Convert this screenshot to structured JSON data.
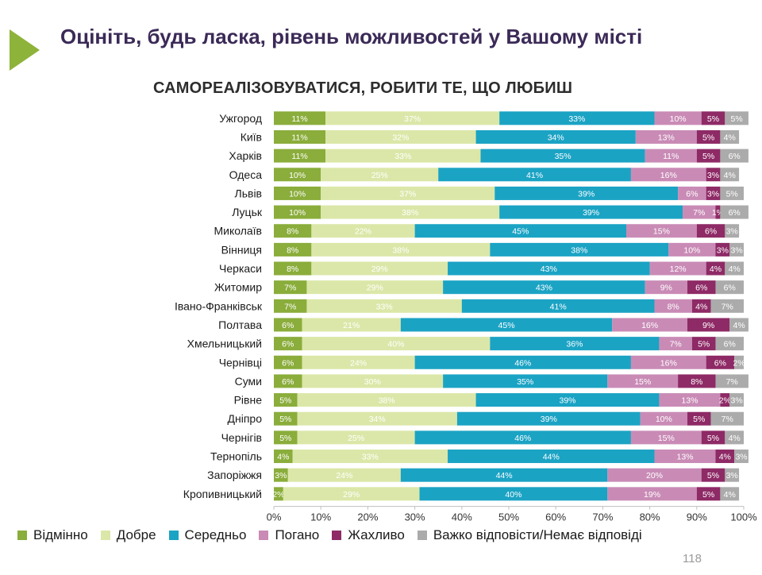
{
  "slide": {
    "title": "Оцініть, будь ласка, рівень можливостей у Вашому місті",
    "subtitle": "САМОРЕАЛІЗОВУВАТИСЯ, РОБИТИ ТЕ, ЩО ЛЮБИШ",
    "page_number": "118",
    "arrow_icon": "play-arrow-icon"
  },
  "colors": {
    "title": "#3b2a57",
    "arrow": "#8db33a",
    "label_text": "#ffffff"
  },
  "chart_data": {
    "type": "bar",
    "orientation": "horizontal",
    "stacked": "percent",
    "categories": [
      "Ужгород",
      "Київ",
      "Харків",
      "Одеса",
      "Львів",
      "Луцьк",
      "Миколаїв",
      "Вінниця",
      "Черкаси",
      "Житомир",
      "Івано-Франківськ",
      "Полтава",
      "Хмельницький",
      "Чернівці",
      "Суми",
      "Рівне",
      "Дніпро",
      "Чернігів",
      "Тернопіль",
      "Запоріжжя",
      "Кропивницький"
    ],
    "series": [
      {
        "name": "Відмінно",
        "color": "#8aad3b",
        "values": [
          11,
          11,
          11,
          10,
          10,
          10,
          8,
          8,
          8,
          7,
          7,
          6,
          6,
          6,
          6,
          5,
          5,
          5,
          4,
          3,
          2
        ]
      },
      {
        "name": "Добре",
        "color": "#dbe7a8",
        "values": [
          37,
          32,
          33,
          25,
          37,
          38,
          22,
          38,
          29,
          29,
          33,
          21,
          40,
          24,
          30,
          38,
          34,
          25,
          33,
          24,
          29
        ]
      },
      {
        "name": "Середньо",
        "color": "#1ba3c4",
        "values": [
          33,
          34,
          35,
          41,
          39,
          39,
          45,
          38,
          43,
          43,
          41,
          45,
          36,
          46,
          35,
          39,
          39,
          46,
          44,
          44,
          40
        ]
      },
      {
        "name": "Погано",
        "color": "#c98bb6",
        "values": [
          10,
          13,
          11,
          16,
          6,
          7,
          15,
          10,
          12,
          9,
          8,
          16,
          7,
          16,
          15,
          13,
          10,
          15,
          13,
          20,
          19
        ]
      },
      {
        "name": "Жахливо",
        "color": "#8e2a66",
        "values": [
          5,
          5,
          5,
          3,
          3,
          1,
          6,
          3,
          4,
          6,
          4,
          9,
          5,
          6,
          8,
          2,
          5,
          5,
          4,
          5,
          5
        ]
      },
      {
        "name": "Важко відповісти/Немає відповіді",
        "color": "#ababab",
        "values": [
          5,
          4,
          6,
          4,
          5,
          6,
          3,
          3,
          4,
          6,
          7,
          4,
          6,
          2,
          7,
          3,
          7,
          4,
          3,
          3,
          4
        ]
      }
    ],
    "xticks": [
      "0%",
      "10%",
      "20%",
      "30%",
      "40%",
      "50%",
      "60%",
      "70%",
      "80%",
      "90%",
      "100%"
    ],
    "xlim": [
      0,
      100
    ],
    "legend_position": "bottom",
    "grid": false
  }
}
